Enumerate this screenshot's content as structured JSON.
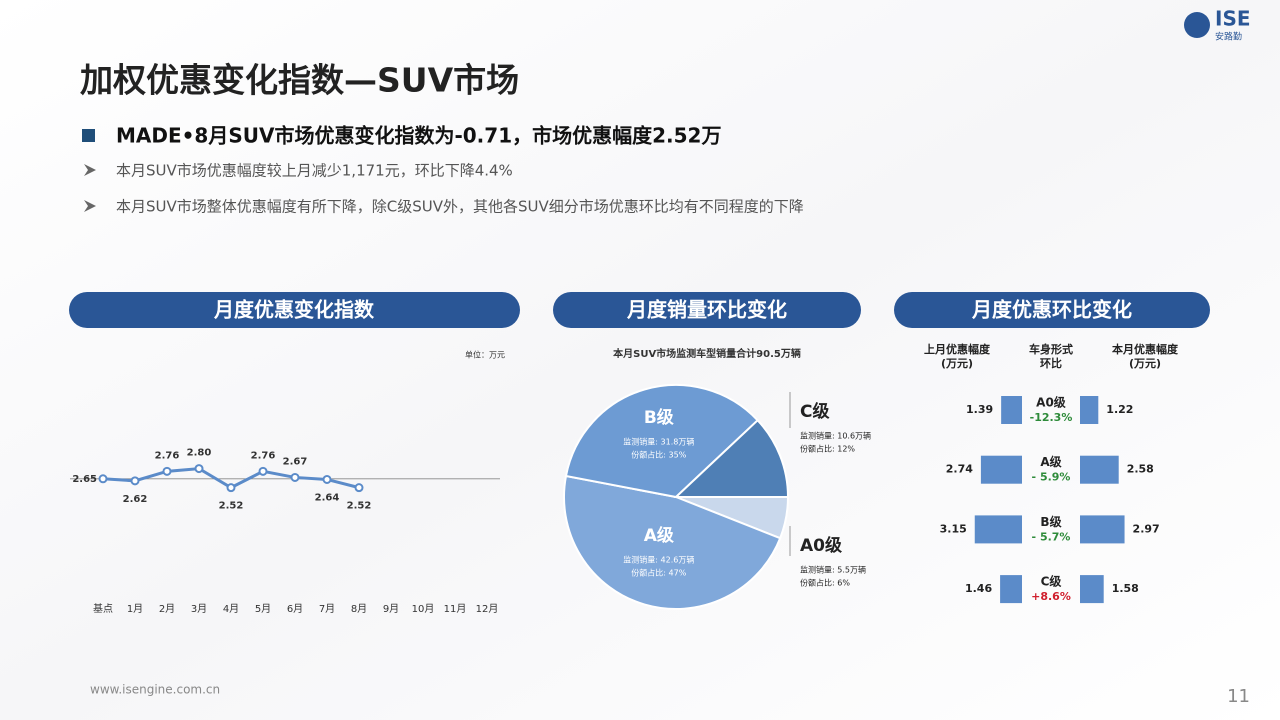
{
  "header": {
    "title": "加权优惠变化指数—SUV市场",
    "bullet": "MADE•8月SUV市场优惠变化指数为-0.71，市场优惠幅度2.52万",
    "points": [
      "本月SUV市场优惠幅度较上月减少1,171元，环比下降4.4%",
      "本月SUV市场整体优惠幅度有所下降，除C级SUV外，其他各SUV细分市场优惠环比均有不同程度的下降"
    ]
  },
  "logo": {
    "name": "ISE",
    "subname": "安路勤"
  },
  "footer": {
    "url": "www.isengine.com.cn",
    "page": "11"
  },
  "chart_data": [
    {
      "type": "line",
      "title": "月度优惠变化指数",
      "unit": "单位：万元",
      "categories": [
        "基点",
        "1月",
        "2月",
        "3月",
        "4月",
        "5月",
        "6月",
        "7月",
        "8月",
        "9月",
        "10月",
        "11月",
        "12月"
      ],
      "values": [
        2.65,
        2.62,
        2.76,
        2.8,
        2.52,
        2.76,
        2.67,
        2.64,
        2.52,
        null,
        null,
        null,
        null
      ],
      "value_labels": [
        "2.65",
        "2.62",
        "2.76",
        "2.80",
        "2.52",
        "2.76",
        "2.67",
        "2.64",
        "2.52",
        null,
        null,
        null,
        null
      ],
      "color": "#5b8bc9",
      "ylim": [
        2.0,
        3.5
      ]
    },
    {
      "type": "pie",
      "title": "月度销量环比变化",
      "subtitle": "本月SUV市场监测车型销量合计90.5万辆",
      "categories": [
        "A0级",
        "A级",
        "B级",
        "C级"
      ],
      "values": [
        6,
        47,
        35,
        12
      ],
      "colors": [
        "#c9d8ec",
        "#80a8da",
        "#6d9bd3",
        "#4f7fb5"
      ],
      "volumes": [
        5.5,
        42.6,
        31.8,
        10.6
      ],
      "volume_labels": [
        "监测销量: 5.5万辆",
        "监测销量: 42.6万辆",
        "监测销量: 31.8万辆",
        "监测销量: 10.6万辆"
      ],
      "value_labels": [
        "份额占比: 6%",
        "份额占比: 47%",
        "份额占比: 35%",
        "份额占比: 12%"
      ]
    },
    {
      "type": "paired-bar",
      "title": "月度优惠环比变化",
      "headers": [
        [
          "上月优惠幅度",
          "(万元)"
        ],
        [
          "车身形式",
          "环比"
        ],
        [
          "本月优惠幅度",
          "(万元)"
        ]
      ],
      "categories": [
        "A0级",
        "A级",
        "B级",
        "C级"
      ],
      "series": [
        {
          "name": "上月优惠幅度",
          "color": "#5b8bc9",
          "values": [
            1.39,
            2.74,
            3.15,
            1.46
          ]
        },
        {
          "name": "本月优惠幅度",
          "color": "#5b8bc9",
          "values": [
            1.22,
            2.58,
            2.97,
            1.58
          ]
        }
      ],
      "change": [
        -12.3,
        -5.9,
        -5.7,
        8.6
      ],
      "change_labels": [
        "-12.3%",
        "- 5.9%",
        "- 5.7%",
        "+8.6%"
      ],
      "negative_color": "#2e8b3a",
      "positive_color": "#d0202e",
      "xlim": [
        0,
        4
      ]
    }
  ]
}
